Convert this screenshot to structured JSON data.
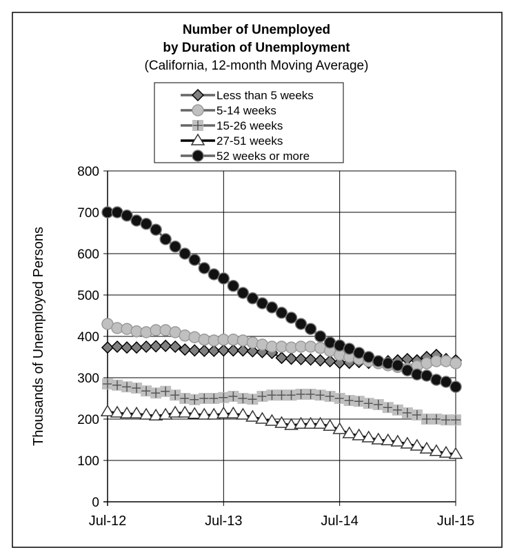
{
  "chart_data": {
    "type": "line",
    "title": "Number of Unemployed",
    "title_line2": "by Duration of Unemployment",
    "subtitle": "(California, 12-month Moving Average)",
    "xlabel": "",
    "ylabel": "Thousands of Unemployed Persons",
    "ylim": [
      0,
      800
    ],
    "yticks": [
      0,
      100,
      200,
      300,
      400,
      500,
      600,
      700,
      800
    ],
    "xticks": [
      "Jul-12",
      "Jul-13",
      "Jul-14",
      "Jul-15"
    ],
    "x_months": 37,
    "grid": true,
    "legend_position": "top-center",
    "series": [
      {
        "name": "Less than 5 weeks",
        "marker": "diamond",
        "color": "#808080",
        "values": [
          373,
          375,
          373,
          373,
          375,
          376,
          377,
          375,
          368,
          366,
          365,
          365,
          366,
          366,
          366,
          364,
          362,
          360,
          348,
          346,
          345,
          344,
          342,
          340,
          336,
          336,
          338,
          336,
          336,
          340,
          342,
          345,
          342,
          350,
          355,
          345,
          342
        ]
      },
      {
        "name": "5-14 weeks",
        "marker": "circle",
        "color": "#c0c0c0",
        "values": [
          430,
          420,
          418,
          412,
          410,
          415,
          415,
          410,
          402,
          398,
          392,
          390,
          392,
          392,
          390,
          385,
          380,
          375,
          375,
          373,
          375,
          375,
          372,
          365,
          355,
          350,
          345,
          340,
          335,
          330,
          326,
          322,
          328,
          335,
          340,
          340,
          335
        ]
      },
      {
        "name": "15-26 weeks",
        "marker": "plus",
        "color": "#c0c0c0",
        "values": [
          285,
          282,
          278,
          275,
          268,
          263,
          267,
          258,
          250,
          247,
          250,
          250,
          252,
          255,
          250,
          248,
          255,
          258,
          258,
          258,
          260,
          260,
          258,
          255,
          250,
          245,
          243,
          238,
          235,
          228,
          222,
          215,
          210,
          200,
          200,
          198,
          198
        ]
      },
      {
        "name": "27-51 weeks",
        "marker": "triangle",
        "color": "#000000",
        "values": [
          218,
          215,
          213,
          213,
          210,
          208,
          210,
          215,
          215,
          212,
          210,
          210,
          213,
          213,
          210,
          205,
          200,
          195,
          190,
          185,
          188,
          188,
          188,
          183,
          175,
          165,
          160,
          155,
          150,
          148,
          145,
          140,
          135,
          128,
          122,
          118,
          115
        ]
      },
      {
        "name": "52 weeks or more",
        "marker": "circle",
        "color": "#000000",
        "values": [
          700,
          700,
          692,
          680,
          672,
          658,
          635,
          617,
          600,
          585,
          565,
          550,
          540,
          522,
          505,
          492,
          480,
          470,
          457,
          445,
          430,
          418,
          400,
          385,
          378,
          370,
          360,
          350,
          340,
          335,
          330,
          318,
          308,
          305,
          295,
          290,
          278
        ]
      }
    ]
  }
}
